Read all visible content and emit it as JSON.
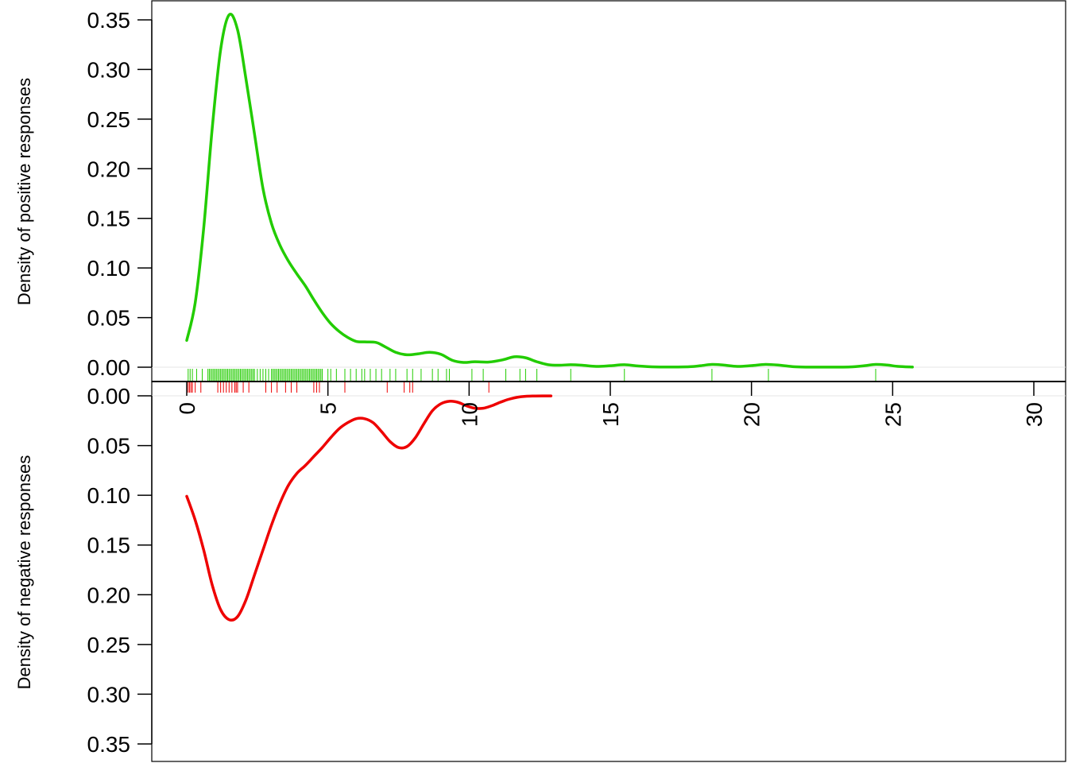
{
  "chart_data": [
    {
      "type": "line",
      "panel": "top",
      "ylabel": "Density of positive responses",
      "ylim": [
        0,
        0.35
      ],
      "y_ticks": [
        "0.00",
        "0.05",
        "0.10",
        "0.15",
        "0.20",
        "0.25",
        "0.30",
        "0.35"
      ],
      "xlim": [
        0,
        30
      ],
      "x_ticks": [
        "0",
        "5",
        "10",
        "15",
        "20",
        "25",
        "30"
      ],
      "series": [
        {
          "color": "#22cc00",
          "x": [
            0,
            0.3,
            0.6,
            0.9,
            1.2,
            1.5,
            1.8,
            2.1,
            2.4,
            2.7,
            3.0,
            3.3,
            3.6,
            3.9,
            4.2,
            4.5,
            4.8,
            5.1,
            5.4,
            5.7,
            6.0,
            6.3,
            6.7,
            7.0,
            7.4,
            7.8,
            8.2,
            8.6,
            9.0,
            9.4,
            9.8,
            10.2,
            10.7,
            11.2,
            11.6,
            12.0,
            12.4,
            12.8,
            13.2,
            13.6,
            14.0,
            14.5,
            15.0,
            15.5,
            16.0,
            16.6,
            17.2,
            17.8,
            18.2,
            18.6,
            19.0,
            19.5,
            20.0,
            20.5,
            21.0,
            21.5,
            22.0,
            22.5,
            23.0,
            23.5,
            24.0,
            24.4,
            24.8,
            25.2,
            25.7
          ],
          "values": [
            0.027,
            0.065,
            0.14,
            0.24,
            0.32,
            0.355,
            0.34,
            0.29,
            0.235,
            0.18,
            0.145,
            0.123,
            0.107,
            0.094,
            0.082,
            0.068,
            0.055,
            0.044,
            0.036,
            0.03,
            0.026,
            0.0255,
            0.025,
            0.021,
            0.015,
            0.0125,
            0.0135,
            0.015,
            0.013,
            0.007,
            0.0048,
            0.0055,
            0.0052,
            0.0075,
            0.0105,
            0.0095,
            0.0055,
            0.0025,
            0.002,
            0.0025,
            0.002,
            0.0008,
            0.0015,
            0.0025,
            0.0012,
            0.0003,
            0.0002,
            0.0005,
            0.0015,
            0.0028,
            0.0022,
            0.0008,
            0.0016,
            0.0028,
            0.002,
            0.0005,
            0.0001,
            0.0001,
            0.0001,
            0.0003,
            0.0015,
            0.0028,
            0.0022,
            0.0008,
            0.0002
          ]
        }
      ],
      "rug": [
        0.05,
        0.12,
        0.2,
        0.35,
        0.55,
        0.75,
        0.8,
        0.85,
        0.9,
        0.95,
        1.0,
        1.05,
        1.1,
        1.15,
        1.2,
        1.25,
        1.3,
        1.35,
        1.4,
        1.45,
        1.5,
        1.55,
        1.6,
        1.65,
        1.7,
        1.75,
        1.8,
        1.85,
        1.9,
        1.95,
        2.0,
        2.05,
        2.1,
        2.15,
        2.2,
        2.25,
        2.3,
        2.35,
        2.4,
        2.5,
        2.6,
        2.7,
        2.8,
        2.9,
        3.0,
        3.05,
        3.1,
        3.15,
        3.2,
        3.25,
        3.3,
        3.35,
        3.4,
        3.45,
        3.5,
        3.55,
        3.6,
        3.65,
        3.7,
        3.75,
        3.8,
        3.85,
        3.9,
        3.95,
        4.0,
        4.05,
        4.1,
        4.15,
        4.2,
        4.25,
        4.3,
        4.35,
        4.4,
        4.45,
        4.5,
        4.55,
        4.6,
        4.65,
        4.7,
        4.75,
        4.8,
        5.0,
        5.1,
        5.3,
        5.6,
        5.8,
        6.0,
        6.2,
        6.3,
        6.5,
        6.7,
        6.9,
        7.2,
        7.4,
        7.8,
        8.0,
        8.3,
        8.7,
        8.9,
        9.2,
        9.3,
        10.1,
        10.5,
        11.3,
        11.8,
        12.0,
        12.4,
        13.6,
        15.5,
        18.6,
        20.6,
        24.4
      ]
    },
    {
      "type": "line",
      "panel": "bottom",
      "ylabel": "Density of negative responses",
      "ylim": [
        0,
        0.35
      ],
      "y_ticks": [
        "0.00",
        "0.05",
        "0.10",
        "0.15",
        "0.20",
        "0.25",
        "0.30",
        "0.35"
      ],
      "axis_inverted": true,
      "series": [
        {
          "color": "#ee0000",
          "x": [
            0,
            0.3,
            0.6,
            0.9,
            1.2,
            1.5,
            1.8,
            2.1,
            2.4,
            2.7,
            3.0,
            3.3,
            3.6,
            3.9,
            4.2,
            4.5,
            4.8,
            5.1,
            5.4,
            5.7,
            6.0,
            6.3,
            6.6,
            6.9,
            7.2,
            7.5,
            7.8,
            8.1,
            8.4,
            8.7,
            9.0,
            9.3,
            9.6,
            9.9,
            10.2,
            10.5,
            10.8,
            11.1,
            11.4,
            11.7,
            12.0,
            12.3,
            12.6,
            12.9
          ],
          "values": [
            0.101,
            0.125,
            0.155,
            0.19,
            0.215,
            0.225,
            0.222,
            0.205,
            0.18,
            0.155,
            0.13,
            0.108,
            0.09,
            0.078,
            0.07,
            0.061,
            0.052,
            0.042,
            0.033,
            0.027,
            0.023,
            0.023,
            0.027,
            0.036,
            0.046,
            0.052,
            0.051,
            0.042,
            0.028,
            0.015,
            0.008,
            0.0055,
            0.0065,
            0.01,
            0.0125,
            0.0125,
            0.01,
            0.0065,
            0.0035,
            0.0015,
            0.0005,
            0.0002,
            0.0001,
            0.0001
          ]
        }
      ],
      "rug": [
        0.05,
        0.1,
        0.15,
        0.2,
        0.3,
        0.5,
        1.1,
        1.2,
        1.3,
        1.4,
        1.5,
        1.6,
        1.7,
        1.75,
        1.8,
        2.0,
        2.2,
        2.8,
        3.0,
        3.2,
        3.5,
        3.7,
        3.9,
        4.5,
        4.6,
        4.7,
        5.6,
        7.1,
        7.7,
        7.9,
        8.0,
        10.7
      ]
    }
  ]
}
